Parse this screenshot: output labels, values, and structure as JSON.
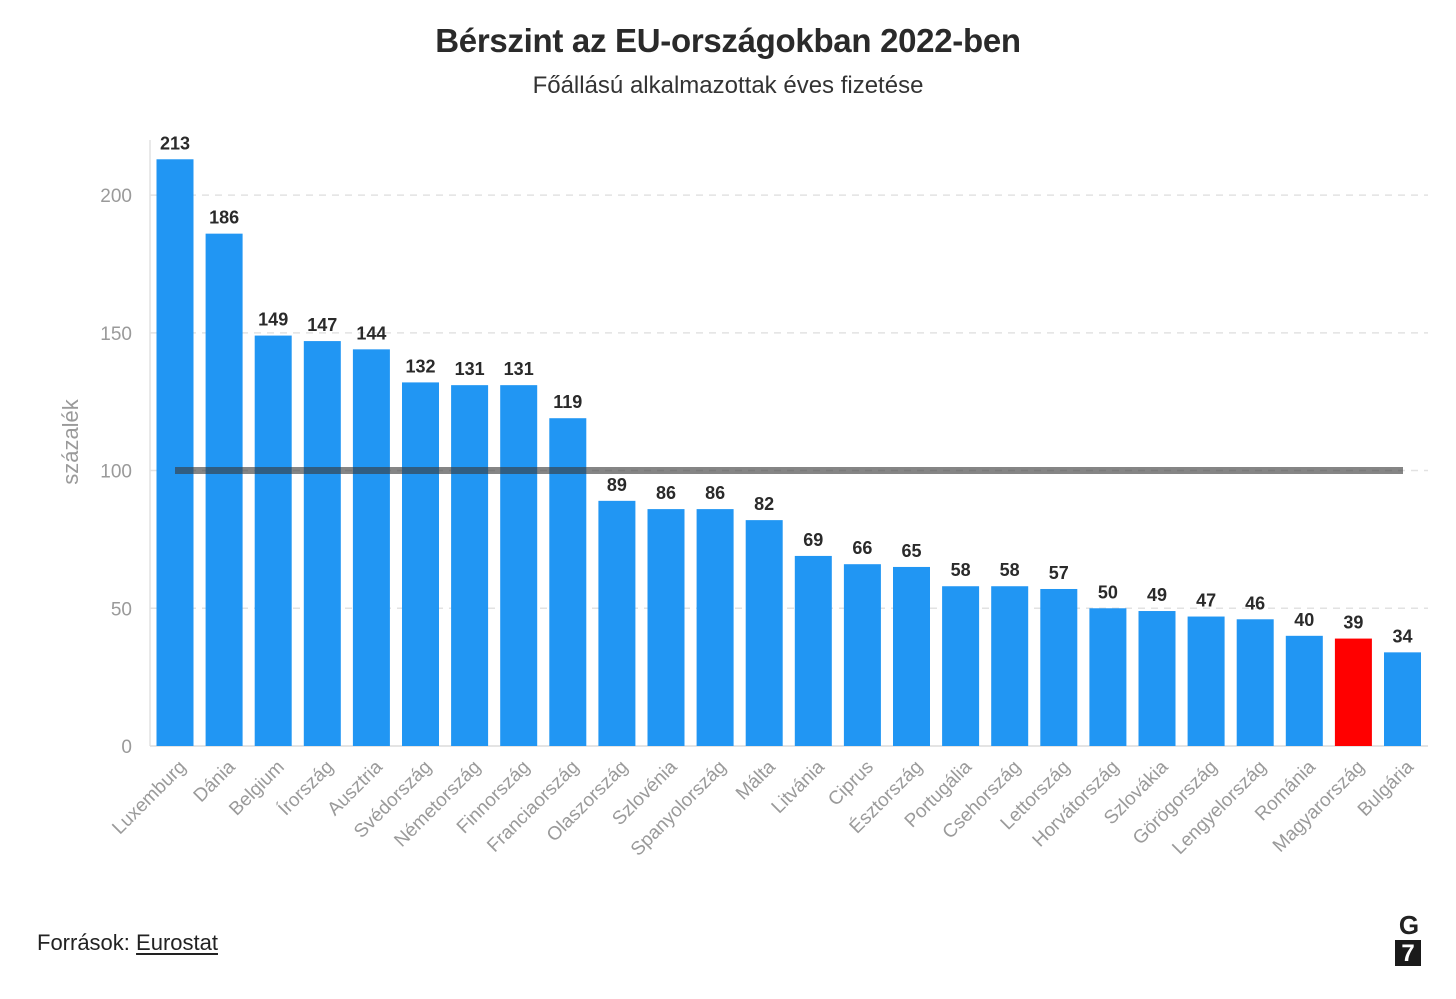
{
  "chart_data": {
    "type": "bar",
    "title": "Bérszint az EU-országokban 2022-ben",
    "subtitle": "Főállású alkalmazottak éves fizetése",
    "ylabel": "százalék",
    "xlabel": "",
    "ylim": [
      0,
      220
    ],
    "yticks": [
      0,
      50,
      100,
      150,
      200
    ],
    "grid": true,
    "reference_line": 100,
    "categories": [
      "Luxemburg",
      "Dánia",
      "Belgium",
      "Írország",
      "Ausztria",
      "Svédország",
      "Németország",
      "Finnország",
      "Franciaország",
      "Olaszország",
      "Szlovénia",
      "Spanyolország",
      "Málta",
      "Litvánia",
      "Ciprus",
      "Észtország",
      "Portugália",
      "Csehország",
      "Lettország",
      "Horvátország",
      "Szlovákia",
      "Görögország",
      "Lengyelország",
      "Románia",
      "Magyarország",
      "Bulgária"
    ],
    "values": [
      213,
      186,
      149,
      147,
      144,
      132,
      131,
      131,
      119,
      89,
      86,
      86,
      82,
      69,
      66,
      65,
      58,
      58,
      57,
      50,
      49,
      47,
      46,
      40,
      39,
      34
    ],
    "highlight": "Magyarország",
    "colors": {
      "bar": "#2196F3",
      "highlight": "#FF0000",
      "reference_line": "#7a7a7a"
    }
  },
  "footer": {
    "source_prefix": "Források:",
    "source_link": "Eurostat",
    "logo_top": "G",
    "logo_bottom": "7"
  }
}
